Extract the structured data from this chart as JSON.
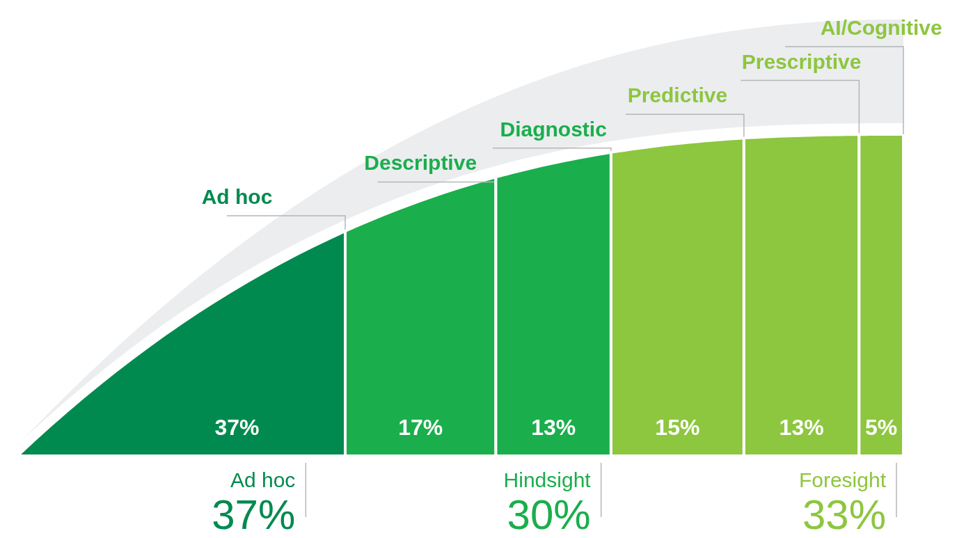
{
  "chart_data": {
    "type": "other",
    "categories": [
      "Ad hoc",
      "Descriptive",
      "Diagnostic",
      "Predictive",
      "Prescriptive",
      "AI/Cognitive"
    ],
    "values": [
      37,
      17,
      13,
      15,
      13,
      5
    ],
    "colors": [
      "#008a4f",
      "#1aae4c",
      "#1aae4c",
      "#8dc63f",
      "#8dc63f",
      "#8dc63f"
    ],
    "value_labels": [
      "37%",
      "17%",
      "13%",
      "15%",
      "13%",
      "5%"
    ],
    "annotations": [
      "Ad hoc",
      "37%",
      "Hindsight",
      "30%",
      "Foresight",
      "33%"
    ]
  }
}
